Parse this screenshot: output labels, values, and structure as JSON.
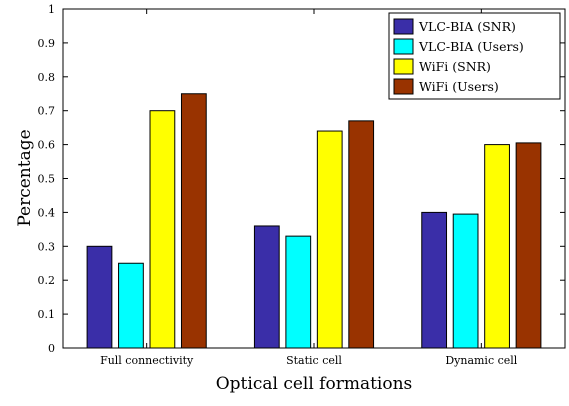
{
  "chart_data": {
    "type": "bar",
    "categories": [
      "Full connectivity",
      "Static cell",
      "Dynamic cell"
    ],
    "series": [
      {
        "name": "VLC-BIA (SNR)",
        "color": "#3a2ea8",
        "values": [
          0.3,
          0.36,
          0.4
        ]
      },
      {
        "name": "VLC-BIA (Users)",
        "color": "#00ffff",
        "values": [
          0.25,
          0.33,
          0.395
        ]
      },
      {
        "name": "WiFi (SNR)",
        "color": "#ffff00",
        "values": [
          0.7,
          0.64,
          0.6
        ]
      },
      {
        "name": "WiFi (Users)",
        "color": "#993300",
        "values": [
          0.75,
          0.67,
          0.605
        ]
      }
    ],
    "xlabel": "Optical cell formations",
    "ylabel": "Percentage",
    "ylim": [
      0,
      1
    ],
    "yticks": [
      "0",
      "0.1",
      "0.2",
      "0.3",
      "0.4",
      "0.5",
      "0.6",
      "0.7",
      "0.8",
      "0.9",
      "1"
    ],
    "legend_position": "top-right",
    "grid": false
  }
}
